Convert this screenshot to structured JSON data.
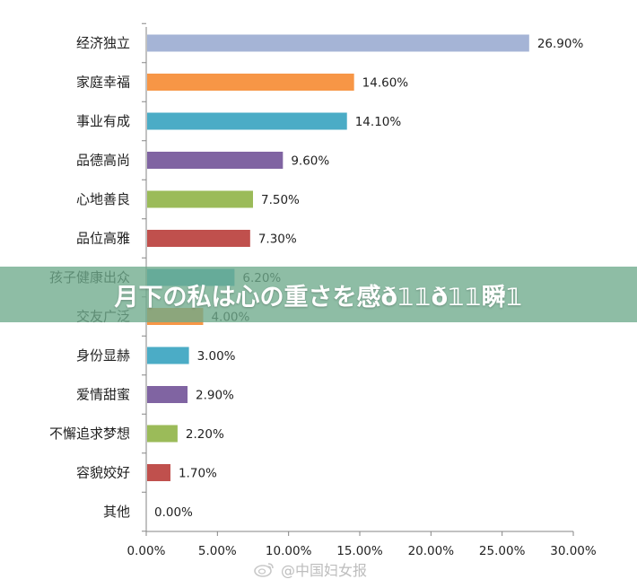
{
  "chart_data": {
    "type": "bar",
    "orientation": "horizontal",
    "categories": [
      "经济独立",
      "家庭幸福",
      "事业有成",
      "品德高尚",
      "心地善良",
      "品位高雅",
      "孩子健康出众",
      "交友广泛",
      "身份显赫",
      "爱情甜蜜",
      "不懈追求梦想",
      "容貌姣好",
      "其他"
    ],
    "values": [
      26.9,
      14.6,
      14.1,
      9.6,
      7.5,
      7.3,
      6.2,
      4.0,
      3.0,
      2.9,
      2.2,
      1.7,
      0.0
    ],
    "value_labels": [
      "26.90%",
      "14.60%",
      "14.10%",
      "9.60%",
      "7.50%",
      "7.30%",
      "6.20%",
      "4.00%",
      "3.00%",
      "2.90%",
      "2.20%",
      "1.70%",
      "0.00%"
    ],
    "colors": [
      "#A5B4D6",
      "#F79646",
      "#4BACC6",
      "#8064A2",
      "#9BBB59",
      "#C0504D",
      "#4BACC6",
      "#F79646",
      "#4BACC6",
      "#8064A2",
      "#9BBB59",
      "#C0504D",
      "#8064A2"
    ],
    "xlim": [
      0,
      30
    ],
    "x_ticks": [
      "0.00%",
      "5.00%",
      "10.00%",
      "15.00%",
      "20.00%",
      "25.00%",
      "30.00%"
    ],
    "grid": false,
    "title": "",
    "xlabel": "",
    "ylabel": ""
  },
  "overlay": {
    "text": "月下の私は心の重さを感ð𝟙𝟙ð𝟙𝟙瞬𝟙",
    "color": "#6EAA8C"
  },
  "watermark": {
    "text": "@中国妇女报",
    "icon": "weibo-icon"
  }
}
